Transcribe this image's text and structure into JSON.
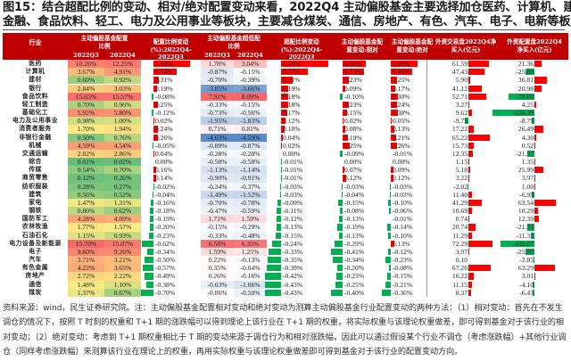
{
  "title": {
    "line1": "图15：结合超配比例的变动、相对/绝对配置变动来看，2022Q4 主动偏股基金主要选择加仓医药、计算机、建材、",
    "line2": "金融、食品饮料、轻工、电力及公用事业等板块，主要减仓煤炭、通信、房地产、有色、汽车、电子、电新等板块"
  },
  "table": {
    "headers": {
      "industry": "行业",
      "weight_group": "主动偏股基金配置比例",
      "weight_q3": "2022Q3",
      "weight_q4": "2022Q4",
      "weight_change": "配置比例变动(%):2022Q4-2022Q3",
      "ow_group": "主动偏股基金超低配比例",
      "ow_q3": "2022Q3",
      "ow_q4": "2022Q4",
      "ow_change": "超配比例变动(%):2022Q4-2022Q3",
      "relative": "主动偏股基金配置变动:相对",
      "absolute": "主动偏股基金配置变动:绝对",
      "foreign_trading": "外资交易盘2022Q4净买入(亿元)",
      "foreign_allocation": "外资配置盘2022Q4净买入(亿元)"
    },
    "colors": {
      "header_bg": "#c00000",
      "positive_bar": "#ff0000",
      "negative_bar": "#00b050",
      "heat_high": "#f8696b",
      "heat_mid": "#ffeb84",
      "heat_low": "#63be7b",
      "ow_positive": "#f8696b",
      "ow_negative": "#5a8ac6"
    },
    "rows": [
      {
        "name": "医药",
        "w_q3": "10.26%",
        "w_q4": "12.25%",
        "w_chg": "1.99%",
        "ow_q3": "1.78%",
        "ow_q4": "3.04%",
        "ow_chg": "1.26%",
        "rel": "0.80%",
        "abs": "1.08%",
        "trade": "61.59",
        "alloc": "21.36"
      },
      {
        "name": "计算机",
        "w_q3": "3.67%",
        "w_q4": "4.91%",
        "w_chg": "1.24%",
        "ow_q3": "-0.87%",
        "ow_q4": "-0.15%",
        "ow_chg": "0.72%",
        "rel": "0.75%",
        "abs": "0.85%",
        "trade": "47.43",
        "alloc": "-25.89"
      },
      {
        "name": "建材",
        "w_q3": "0.60%",
        "w_q4": "0.92%",
        "w_chg": "0.31%",
        "ow_q3": "-0.70%",
        "ow_q4": "-0.39%",
        "ow_chg": "0.31%",
        "rel": "0.23%",
        "abs": "0.25%",
        "trade": "5.90",
        "alloc": "36.81"
      },
      {
        "name": "银行",
        "w_q3": "2.84%",
        "w_q4": "3.03%",
        "w_chg": "0.19%",
        "ow_q3": "-3.85%",
        "ow_q4": "-3.66%",
        "ow_chg": "0.19%",
        "rel": "0.09%",
        "abs": "0.17%",
        "trade": "41.12",
        "alloc": "20.98"
      },
      {
        "name": "食品饮料",
        "w_q3": "15.65%",
        "w_q4": "15.57%",
        "w_chg": "-0.08%",
        "ow_q3": "7.91%",
        "ow_q4": "8.09%",
        "ow_chg": "0.18%",
        "rel": "-0.10%",
        "abs": "0.30%",
        "trade": "52.71",
        "alloc": "-78.00"
      },
      {
        "name": "轻工制造",
        "w_q3": "0.70%",
        "w_q4": "0.96%",
        "w_chg": "0.25%",
        "ow_q3": "-0.33%",
        "ow_q4": "-0.15%",
        "ow_chg": "0.18%",
        "rel": "0.23%",
        "abs": "0.24%",
        "trade": "3.27",
        "alloc": "4.25"
      },
      {
        "name": "基础化工",
        "w_q3": "5.92%",
        "w_q4": "5.80%",
        "w_chg": "-0.12%",
        "ow_q3": "-0.73%",
        "ow_q4": "-0.56%",
        "ow_chg": "0.17%",
        "rel": "0.15%",
        "abs": "0.30%",
        "trade": "9.62",
        "alloc": "-126.39"
      },
      {
        "name": "电力及公用事业",
        "w_q3": "0.98%",
        "w_q4": "1.00%",
        "w_chg": "0.02%",
        "ow_q3": "-1.95%",
        "ow_q4": "-1.83%",
        "ow_chg": "0.12%",
        "rel": "0.02%",
        "abs": "0.05%",
        "trade": "-9.75",
        "alloc": "-8.79"
      },
      {
        "name": "消费者服务",
        "w_q3": "1.70%",
        "w_q4": "1.94%",
        "w_chg": "0.24%",
        "ow_q3": "0.71%",
        "ow_q4": "0.81%",
        "ow_chg": "0.10%",
        "rel": "0.08%",
        "abs": "0.13%",
        "trade": "17.22",
        "alloc": "26.49"
      },
      {
        "name": "非银行金融",
        "w_q3": "0.50%",
        "w_q4": "0.76%",
        "w_chg": "0.26%",
        "ow_q3": "-4.63%",
        "ow_q4": "-4.59%",
        "ow_chg": "0.04%",
        "rel": "0.19%",
        "abs": "0.21%",
        "trade": "65.22",
        "alloc": "4.30"
      },
      {
        "name": "机械",
        "w_q3": "4.59%",
        "w_q4": "4.54%",
        "w_chg": "-0.05%",
        "ow_q3": "-0.89%",
        "ow_q4": "-0.87%",
        "ow_chg": "0.02%",
        "rel": "0.25%",
        "abs": "0.26%",
        "trade": "15.73",
        "alloc": "0.52"
      },
      {
        "name": "交通运输",
        "w_q3": "2.82%",
        "w_q4": "2.86%",
        "w_chg": "0.04%",
        "ow_q3": "-0.28%",
        "ow_q4": "-0.28%",
        "ow_chg": "0.00%",
        "rel": "-0.09%",
        "abs": "-0.01%",
        "trade": "12.35",
        "alloc": "-21.57"
      },
      {
        "name": "综合",
        "w_q3": "0.01%",
        "w_q4": "0.02%",
        "w_chg": "0.00%",
        "ow_q3": "-0.58%",
        "ow_q4": "-0.58%",
        "ow_chg": "-0.01%",
        "rel": "0.00%",
        "abs": "0.00%",
        "trade": "1.15",
        "alloc": "1.35"
      },
      {
        "name": "传媒",
        "w_q3": "0.54%",
        "w_q4": "0.70%",
        "w_chg": "0.16%",
        "ow_q3": "-1.13%",
        "ow_q4": "-1.14%",
        "ow_chg": "-0.01%",
        "rel": "0.07%",
        "abs": "0.09%",
        "trade": "5.18",
        "alloc": "25.99"
      },
      {
        "name": "商贸零售",
        "w_q3": "0.12%",
        "w_q4": "0.26%",
        "w_chg": "0.14%",
        "ow_q3": "-0.90%",
        "ow_q4": "-0.91%",
        "ow_chg": "-0.01%",
        "rel": "0.12%",
        "abs": "0.12%",
        "trade": "3.22",
        "alloc": "3.97"
      },
      {
        "name": "纺织服装",
        "w_q3": "0.28%",
        "w_q4": "0.27%",
        "w_chg": "-0.02%",
        "ow_q3": "-0.34%",
        "ow_q4": "-0.37%",
        "ow_chg": "-0.03%",
        "rel": "-0.03%",
        "abs": "-0.03%",
        "trade": "-2.02",
        "alloc": "1.00"
      },
      {
        "name": "建筑",
        "w_q3": "0.56%",
        "w_q4": "0.52%",
        "w_chg": "-0.04%",
        "ow_q3": "-1.49%",
        "ow_q4": "-1.52%",
        "ow_chg": "-0.03%",
        "rel": "-0.04%",
        "abs": "-0.03%",
        "trade": "11.40",
        "alloc": "-6.99"
      },
      {
        "name": "家电",
        "w_q3": "1.47%",
        "w_q4": "1.31%",
        "w_chg": "-0.16%",
        "ow_q3": "-0.70%",
        "ow_q4": "-0.78%",
        "ow_chg": "-0.09%",
        "rel": "-0.15%",
        "abs": "-0.10%",
        "trade": "41.29",
        "alloc": "63.54"
      },
      {
        "name": "钢铁",
        "w_q3": "0.80%",
        "w_q4": "0.62%",
        "w_chg": "-0.18%",
        "ow_q3": "-0.47%",
        "ow_q4": "-0.59%",
        "ow_chg": "-0.11%",
        "rel": "-0.08%",
        "abs": "-0.06%",
        "trade": "10.69",
        "alloc": "10.29"
      },
      {
        "name": "国防军工",
        "w_q3": "4.28%",
        "w_q4": "4.09%",
        "w_chg": "-0.19%",
        "ow_q3": "1.71%",
        "ow_q4": "1.59%",
        "ow_chg": "-0.12%",
        "rel": "-0.13%",
        "abs": "-0.01%",
        "trade": "0.74",
        "alloc": "12.39"
      },
      {
        "name": "农林牧渔",
        "w_q3": "1.77%",
        "w_q4": "1.57%",
        "w_chg": "-0.20%",
        "ow_q3": "-0.15%",
        "ow_q4": "-0.29%",
        "ow_chg": "-0.13%",
        "rel": "-0.19%",
        "abs": "-0.14%",
        "trade": "20.74",
        "alloc": "-21.31"
      },
      {
        "name": "石油石化",
        "w_q3": "1.15%",
        "w_q4": "0.93%",
        "w_chg": "-0.23%",
        "ow_q3": "-0.33%",
        "ow_q4": "-0.48%",
        "ow_chg": "-0.15%",
        "rel": "-0.13%",
        "abs": "-0.10%",
        "trade": "11.29",
        "alloc": "-11.31"
      },
      {
        "name": "电力设备及新能源",
        "w_q3": "15.70%",
        "w_q4": "15.07%",
        "w_chg": "-0.62%",
        "ow_q3": "6.58%",
        "ow_q4": "6.35%",
        "ow_chg": "-0.24%",
        "rel": "-0.29%",
        "abs": "0.13%",
        "trade": "72.29",
        "alloc": "-102.67"
      },
      {
        "name": "电子",
        "w_q3": "9.60%",
        "w_q4": "9.26%",
        "w_chg": "-0.34%",
        "ow_q3": "1.59%",
        "ow_q4": "1.25%",
        "ow_chg": "-0.33%",
        "rel": "-0.41%",
        "abs": "-0.12%",
        "trade": "3.97",
        "alloc": "-25.90"
      },
      {
        "name": "汽车",
        "w_q3": "3.71%",
        "w_q4": "3.21%",
        "w_chg": "-0.50%",
        "ow_q3": "0.22%",
        "ow_q4": "-0.13%",
        "ow_chg": "-0.35%",
        "rel": "-0.34%",
        "abs": "-0.23%",
        "trade": "0.10",
        "alloc": "-2.85"
      },
      {
        "name": "有色金属",
        "w_q3": "4.22%",
        "w_q4": "3.65%",
        "w_chg": "-0.57%",
        "ow_q3": "0.35%",
        "ow_q4": "-0.04%",
        "ow_chg": "-0.39%",
        "rel": "-0.20%",
        "abs": "-0.08%",
        "trade": "67.26",
        "alloc": "63.29"
      },
      {
        "name": "房地产",
        "w_q3": "2.72%",
        "w_q4": "2.22%",
        "w_chg": "-0.49%",
        "ow_q3": "0.26%",
        "ow_q4": "-0.16%",
        "ow_chg": "-0.42%",
        "rel": "-0.23%",
        "abs": "-0.15%",
        "trade": "16.22",
        "alloc": "3.01"
      },
      {
        "name": "通信",
        "w_q3": "1.48%",
        "w_q4": "1.10%",
        "w_chg": "-0.38%",
        "ow_q3": "-0.63%",
        "ow_q4": "-1.06%",
        "ow_chg": "-0.43%",
        "rel": "-0.25%",
        "abs": "-0.21%",
        "trade": "11.15",
        "alloc": "-4.10"
      },
      {
        "name": "煤炭",
        "w_q3": "1.37%",
        "w_q4": "0.67%",
        "w_chg": "-0.70%",
        "ow_q3": "-0.06%",
        "ow_q4": "-0.50%",
        "ow_chg": "-0.43%",
        "rel": "-0.40%",
        "abs": "-0.36%",
        "trade": "8.37",
        "alloc": "-6.43"
      }
    ]
  },
  "footer": {
    "text": "资料来源：wind，民生证券研究院。注：主动偏股基金配置相对变动和绝对变动为测算主动偏股基金行业配置变动的两种方法：（1）相对变动：首先在不发生调仓的情况下，按照 T 时刻的权重和 T+1 期的涨跌幅可以得到理论上该行业在 T+1 期的权重，将实际权重与该理论权重做差，即可得到基金对于该行业的相对变动；（2）绝对变动：考虑到 T+1 期权重相比于 T 期的变动来源于调仓行为和相对涨跌幅，因此可以通过假设某个行业不调仓（考虑涨跌幅）+其他行业调仓（同样考虑涨跌幅）来测算该行业在理论上的权重，再用实际权重与该理论权重做差即可得到基金对于该行业的配置变动方向。"
  }
}
